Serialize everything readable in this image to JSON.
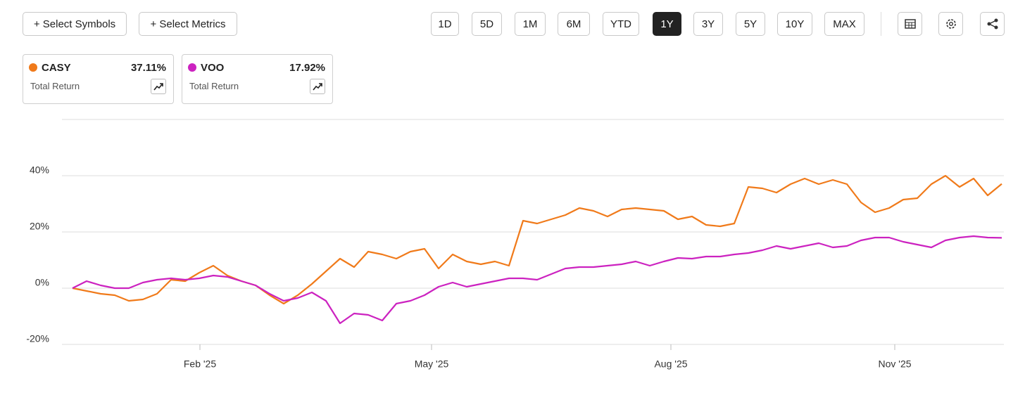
{
  "toolbar": {
    "buttons": [
      "+ Select Symbols",
      "+ Select Metrics"
    ],
    "ranges": [
      "1D",
      "5D",
      "1M",
      "6M",
      "YTD",
      "1Y",
      "3Y",
      "5Y",
      "10Y",
      "MAX"
    ],
    "active_range": "1Y"
  },
  "cards": [
    {
      "value": "37.11%",
      "label": "Total Return"
    },
    {
      "value": "17.92%",
      "label": "Total Return"
    }
  ],
  "chart_data": {
    "type": "line",
    "series": [
      {
        "name": "CASY",
        "color": "#f07a1a",
        "values": [
          0,
          -1,
          -2,
          -2.5,
          -4.5,
          -4,
          -2,
          3,
          2.5,
          5.5,
          8,
          4.5,
          2.5,
          1,
          -2.5,
          -5.5,
          -2.5,
          1.5,
          6,
          10.5,
          7.5,
          13,
          12,
          10.5,
          13,
          14,
          7,
          12,
          9.5,
          8.5,
          9.5,
          8,
          24,
          23,
          24.5,
          26,
          28.5,
          27.5,
          25.5,
          28,
          28.5,
          28,
          27.5,
          24.5,
          25.5,
          22.5,
          22,
          23,
          36,
          35.5,
          34,
          37,
          39,
          37,
          38.5,
          37,
          30.5,
          27,
          28.5,
          31.5,
          32,
          37,
          40,
          36,
          39,
          33,
          37.1
        ]
      },
      {
        "name": "VOO",
        "color": "#cc22c0",
        "values": [
          0,
          2.5,
          1,
          0,
          0,
          2,
          3,
          3.5,
          3,
          3.5,
          4.5,
          4,
          2.5,
          1,
          -2,
          -4.5,
          -3.5,
          -1.5,
          -4.5,
          -12.5,
          -9,
          -9.5,
          -11.5,
          -5.5,
          -4.5,
          -2.5,
          0.5,
          2,
          0.5,
          1.5,
          2.5,
          3.5,
          3.5,
          3,
          5,
          7,
          7.5,
          7.5,
          8,
          8.5,
          9.5,
          8,
          9.5,
          10.75,
          10.5,
          11.25,
          11.25,
          12,
          12.5,
          13.5,
          15,
          14,
          15,
          16,
          14.5,
          15,
          17,
          18,
          18,
          16.5,
          15.5,
          14.5,
          17,
          18,
          18.5,
          18,
          17.9
        ]
      }
    ],
    "ylim": [
      -20,
      60
    ],
    "yticks": [
      {
        "value": -20,
        "label": "-20%"
      },
      {
        "value": 0,
        "label": "0%"
      },
      {
        "value": 20,
        "label": "20%"
      },
      {
        "value": 40,
        "label": "40%"
      }
    ],
    "xlim": [
      -0.75,
      66.15
    ],
    "xticks": [
      {
        "value": 9.05,
        "label": "Feb '25"
      },
      {
        "value": 25.5,
        "label": "May '25"
      },
      {
        "value": 42.5,
        "label": "Aug '25"
      },
      {
        "value": 58.4,
        "label": "Nov '25"
      }
    ],
    "grid": true
  }
}
